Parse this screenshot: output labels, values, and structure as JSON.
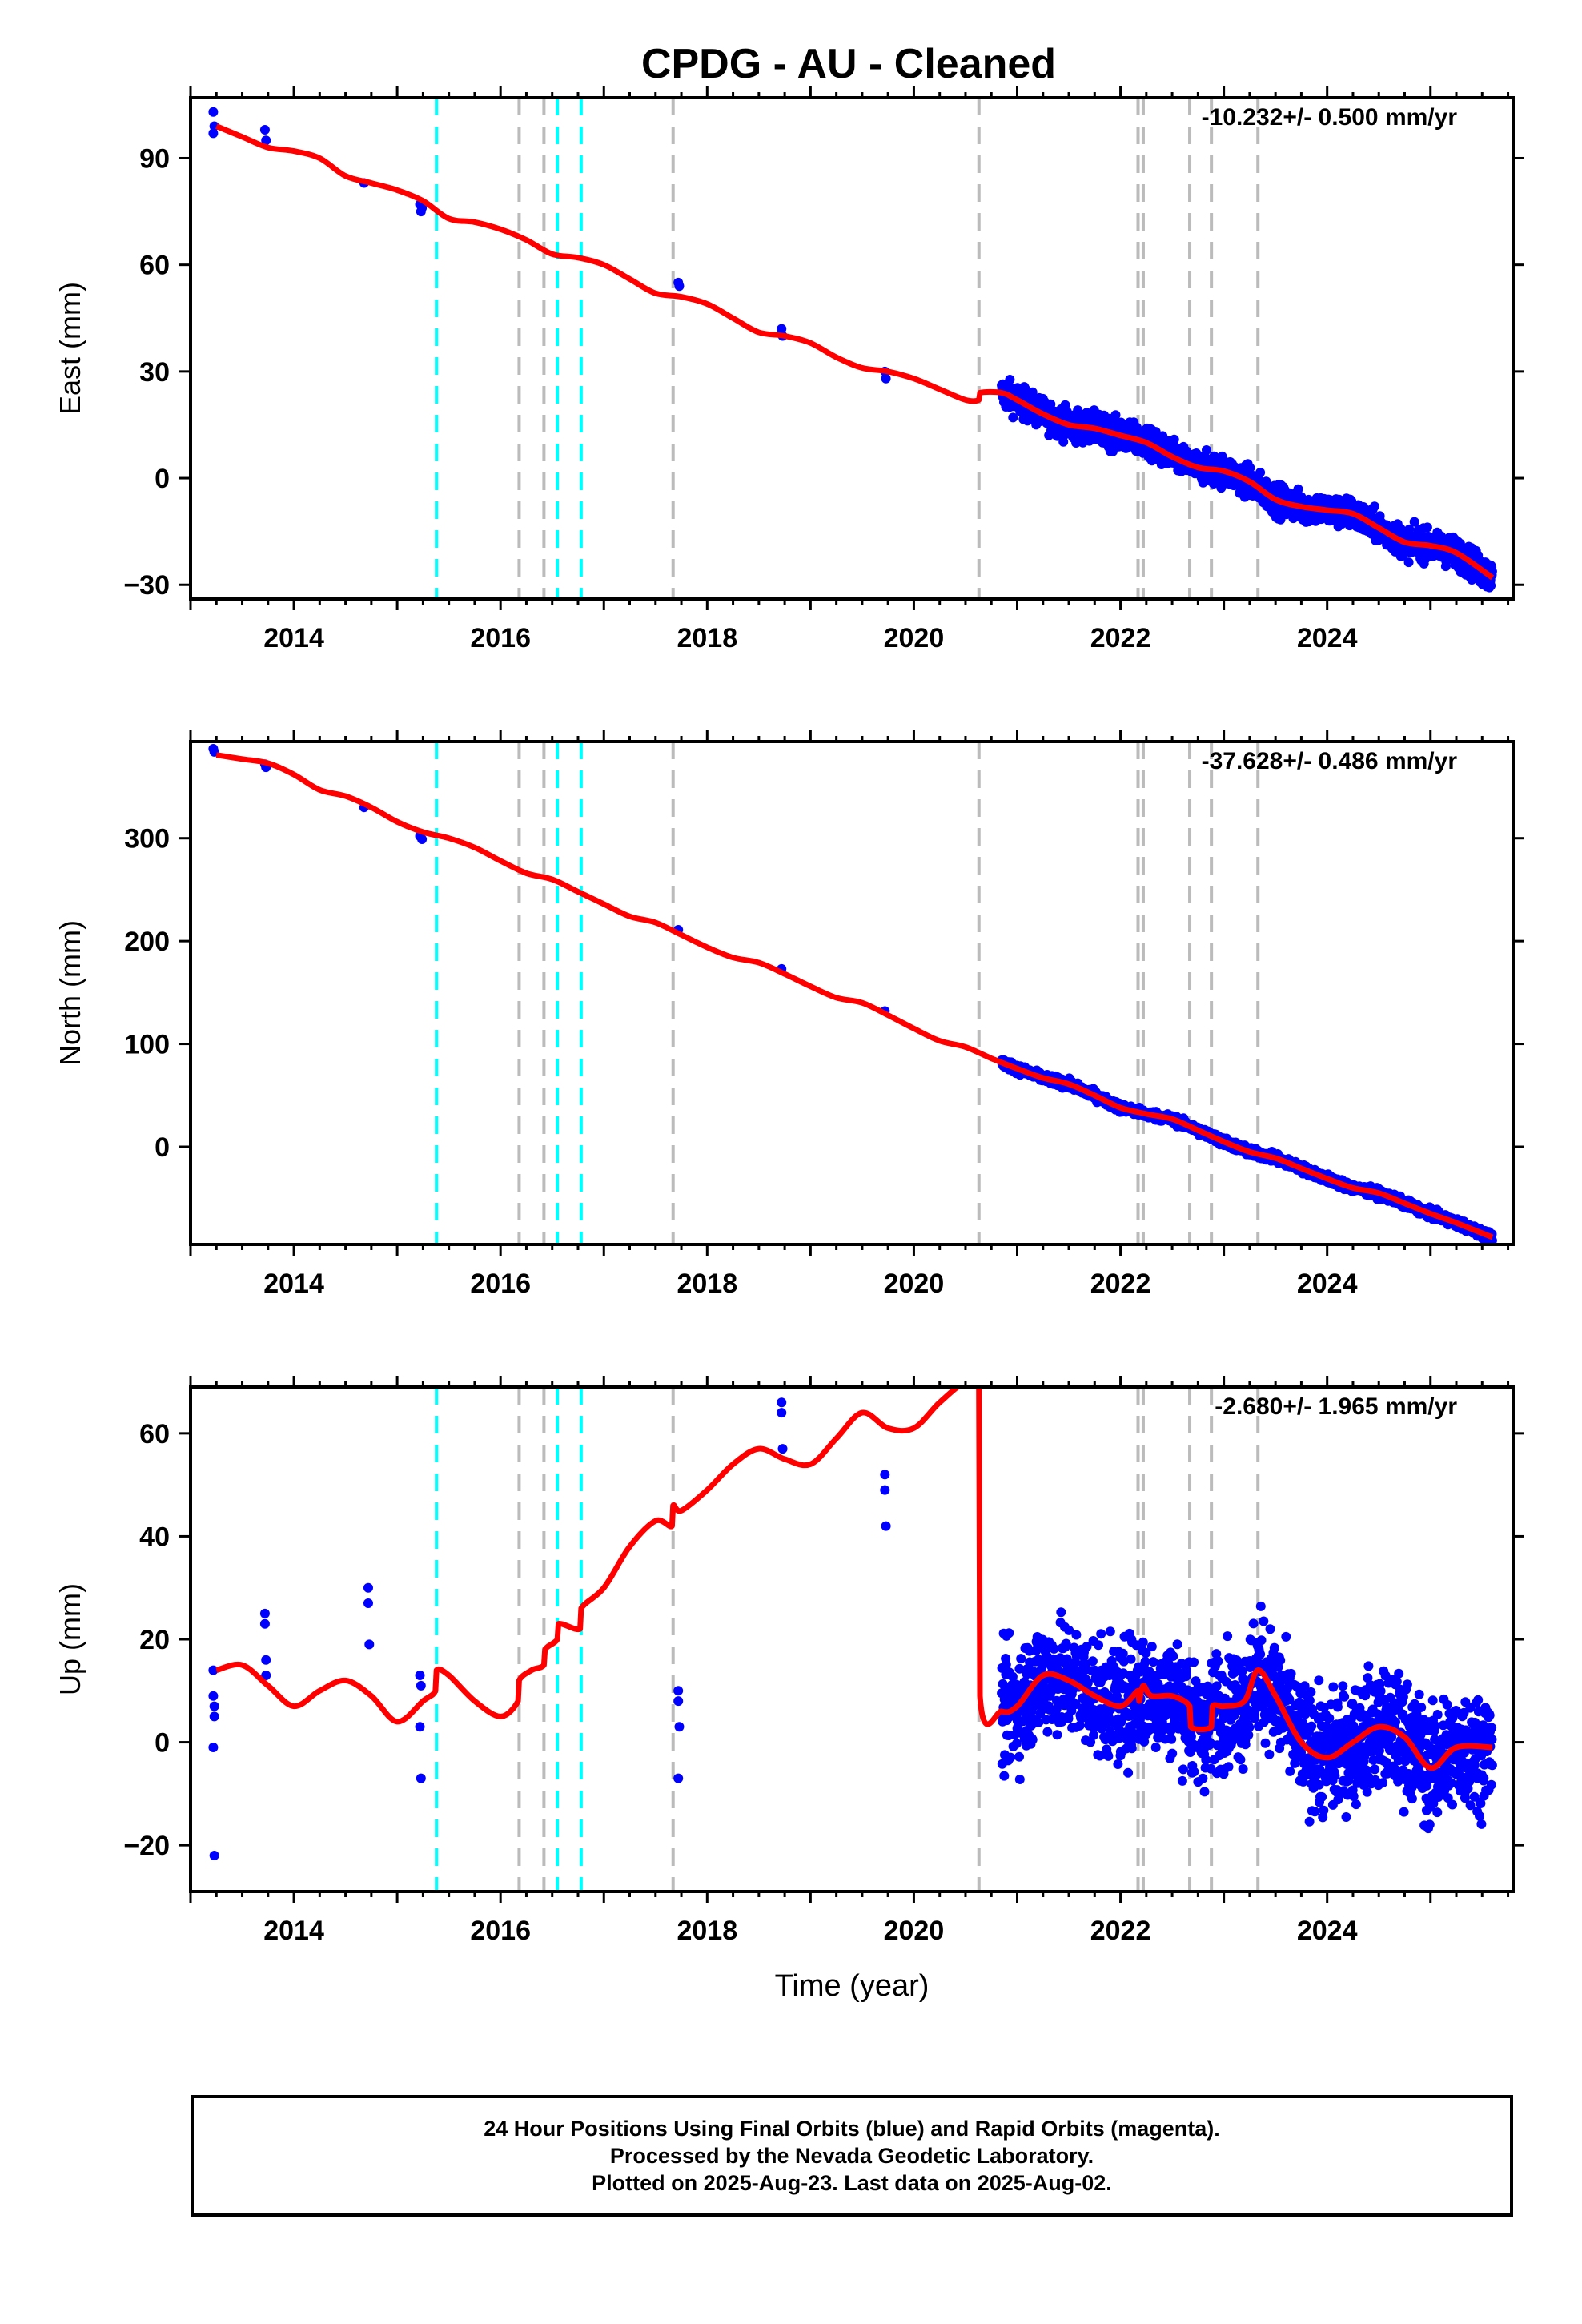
{
  "title": "CPDG  - AU - Cleaned",
  "footer": {
    "line1": "24 Hour Positions Using Final Orbits (blue) and Rapid Orbits (magenta).",
    "line2": "Processed by the Nevada Geodetic Laboratory.",
    "line3": "Plotted on 2025-Aug-23. Last data on 2025-Aug-02."
  },
  "colors": {
    "data_points": "#0000ff",
    "model_line": "#ff0000",
    "antenna_change_lines": "#00ffff",
    "equipment_change_lines": "#bbbbbb"
  },
  "chart_data": [
    {
      "type": "scatter",
      "ylabel": "East (mm)",
      "xlabel": "",
      "xlim": [
        2013.0,
        2025.8
      ],
      "ylim": [
        -34,
        107
      ],
      "xticks": [
        2014,
        2016,
        2018,
        2020,
        2022,
        2024
      ],
      "yticks": [
        -30,
        0,
        30,
        60,
        90
      ],
      "rate_label": "-10.232+/- 0.500 mm/yr",
      "points_x": [
        2013.22,
        2013.22,
        2013.23,
        2013.72,
        2013.73,
        2014.68,
        2015.22,
        2015.23,
        2015.24,
        2017.72,
        2017.73,
        2018.72,
        2018.73,
        2019.72,
        2019.73
      ],
      "points_y": [
        103,
        97,
        99,
        98,
        95,
        83,
        77,
        75,
        76,
        55,
        54,
        42,
        40,
        30,
        28
      ],
      "dense_segment": {
        "x_start": 2020.85,
        "x_end": 2025.6,
        "noise_mm": 3
      },
      "model": {
        "x": [
          2013.25,
          2013.5,
          2013.75,
          2014.0,
          2014.25,
          2014.5,
          2014.75,
          2015.0,
          2015.25,
          2015.5,
          2015.75,
          2016.0,
          2016.25,
          2016.5,
          2016.75,
          2017.0,
          2017.25,
          2017.5,
          2017.75,
          2018.0,
          2018.25,
          2018.5,
          2018.75,
          2019.0,
          2019.25,
          2019.5,
          2019.75,
          2020.0,
          2020.25,
          2020.5,
          2020.63,
          2020.64,
          2020.85,
          2021.0,
          2021.25,
          2021.5,
          2021.75,
          2022.0,
          2022.25,
          2022.5,
          2022.75,
          2023.0,
          2023.25,
          2023.5,
          2023.75,
          2024.0,
          2024.25,
          2024.5,
          2024.75,
          2025.0,
          2025.25,
          2025.6
        ],
        "y": [
          99,
          96,
          93,
          92,
          90,
          85,
          83,
          81,
          78,
          73,
          72,
          70,
          67,
          63,
          62,
          60,
          56,
          52,
          51,
          49,
          45,
          41,
          40,
          38,
          34,
          31,
          30,
          28,
          25,
          22,
          22,
          24,
          24,
          22,
          18,
          15,
          14,
          12,
          10,
          6,
          3,
          2,
          -1,
          -6,
          -8,
          -9,
          -10,
          -14,
          -18,
          -19,
          -21,
          -28
        ]
      },
      "antenna_changes": [
        2015.38,
        2016.55,
        2016.78
      ],
      "equipment_changes": [
        2016.18,
        2016.42,
        2017.67,
        2020.63,
        2022.17,
        2022.22,
        2022.67,
        2022.88,
        2023.33
      ]
    },
    {
      "type": "scatter",
      "ylabel": "North (mm)",
      "xlabel": "",
      "xlim": [
        2013.0,
        2025.8
      ],
      "ylim": [
        -95,
        394
      ],
      "xticks": [
        2014,
        2016,
        2018,
        2020,
        2022,
        2024
      ],
      "yticks": [
        0,
        100,
        200,
        300
      ],
      "rate_label": "-37.628+/- 0.486 mm/yr",
      "points_x": [
        2013.22,
        2013.23,
        2013.72,
        2013.73,
        2014.68,
        2015.22,
        2015.24,
        2017.72,
        2018.72,
        2019.72
      ],
      "points_y": [
        387,
        384,
        372,
        369,
        330,
        302,
        299,
        211,
        173,
        132
      ],
      "dense_segment": {
        "x_start": 2020.85,
        "x_end": 2025.6,
        "noise_mm": 3
      },
      "model": {
        "x": [
          2013.25,
          2013.5,
          2013.75,
          2014.0,
          2014.25,
          2014.5,
          2014.75,
          2015.0,
          2015.25,
          2015.5,
          2015.75,
          2016.0,
          2016.25,
          2016.5,
          2016.75,
          2017.0,
          2017.25,
          2017.5,
          2017.75,
          2018.0,
          2018.25,
          2018.5,
          2018.75,
          2019.0,
          2019.25,
          2019.5,
          2019.75,
          2020.0,
          2020.25,
          2020.5,
          2020.75,
          2021.0,
          2021.25,
          2021.5,
          2021.75,
          2022.0,
          2022.25,
          2022.5,
          2022.75,
          2023.0,
          2023.25,
          2023.5,
          2023.75,
          2024.0,
          2024.25,
          2024.5,
          2024.75,
          2025.0,
          2025.25,
          2025.6
        ],
        "y": [
          381,
          377,
          373,
          362,
          347,
          341,
          330,
          316,
          306,
          300,
          291,
          278,
          266,
          260,
          248,
          236,
          224,
          218,
          206,
          194,
          184,
          179,
          168,
          156,
          145,
          140,
          128,
          115,
          103,
          97,
          86,
          76,
          67,
          61,
          50,
          38,
          32,
          27,
          16,
          5,
          -5,
          -11,
          -21,
          -31,
          -40,
          -45,
          -55,
          -65,
          -74,
          -88
        ]
      },
      "antenna_changes": [
        2015.38,
        2016.55,
        2016.78
      ],
      "equipment_changes": [
        2016.18,
        2016.42,
        2017.67,
        2020.63,
        2022.17,
        2022.22,
        2022.67,
        2022.88,
        2023.33
      ]
    },
    {
      "type": "scatter",
      "ylabel": "Up (mm)",
      "xlabel": "Time (year)",
      "xlim": [
        2013.0,
        2025.8
      ],
      "ylim": [
        -29,
        69
      ],
      "xticks": [
        2014,
        2016,
        2018,
        2020,
        2022,
        2024
      ],
      "yticks": [
        -20,
        0,
        20,
        40,
        60
      ],
      "rate_label": "-2.680+/- 1.965 mm/yr",
      "points_x": [
        2013.22,
        2013.22,
        2013.23,
        2013.23,
        2013.22,
        2013.23,
        2013.72,
        2013.72,
        2013.73,
        2013.73,
        2014.72,
        2014.72,
        2014.73,
        2015.22,
        2015.23,
        2015.22,
        2015.23,
        2017.72,
        2017.72,
        2017.73,
        2017.72,
        2018.72,
        2018.72,
        2018.73,
        2019.72,
        2019.72,
        2019.73
      ],
      "points_y": [
        14,
        9,
        7,
        5,
        -1,
        -22,
        25,
        23,
        16,
        13,
        30,
        27,
        19,
        13,
        11,
        3,
        -7,
        10,
        8,
        3,
        -7,
        66,
        64,
        57,
        52,
        49,
        42
      ],
      "dense_segment": {
        "x_start": 2020.85,
        "x_end": 2025.6,
        "noise_mm": 8
      },
      "model": {
        "x": [
          2013.25,
          2013.5,
          2013.75,
          2014.0,
          2014.25,
          2014.5,
          2014.75,
          2015.0,
          2015.25,
          2015.37,
          2015.38,
          2015.5,
          2015.75,
          2016.0,
          2016.17,
          2016.18,
          2016.3,
          2016.42,
          2016.43,
          2016.55,
          2016.56,
          2016.77,
          2016.78,
          2017.0,
          2017.25,
          2017.5,
          2017.66,
          2017.67,
          2017.75,
          2018.0,
          2018.25,
          2018.5,
          2018.75,
          2019.0,
          2019.25,
          2019.5,
          2019.75,
          2020.0,
          2020.25,
          2020.5,
          2020.63,
          2020.64,
          2020.85,
          2021.0,
          2021.25,
          2021.5,
          2021.75,
          2022.0,
          2022.17,
          2022.18,
          2022.22,
          2022.3,
          2022.5,
          2022.67,
          2022.68,
          2022.88,
          2022.89,
          2023.0,
          2023.2,
          2023.33,
          2023.5,
          2023.75,
          2024.0,
          2024.25,
          2024.5,
          2024.75,
          2025.0,
          2025.25,
          2025.6
        ],
        "y": [
          14,
          15,
          11,
          7,
          10,
          12,
          9,
          4,
          8,
          10,
          14,
          13,
          8,
          5,
          8,
          12,
          14,
          15,
          18,
          20,
          23,
          22,
          26,
          30,
          38,
          43,
          42,
          46,
          45,
          49,
          54,
          57,
          55,
          54,
          59,
          64,
          61,
          61,
          66,
          70,
          69,
          9,
          6,
          7,
          13,
          12,
          9,
          7,
          10,
          8,
          11,
          9,
          9,
          7,
          3,
          3,
          7,
          7,
          8,
          14,
          9,
          0,
          -3,
          0,
          3,
          1,
          -5,
          -1,
          -1
        ]
      },
      "antenna_changes": [
        2015.38,
        2016.55,
        2016.78
      ],
      "equipment_changes": [
        2016.18,
        2016.42,
        2017.67,
        2020.63,
        2022.17,
        2022.22,
        2022.67,
        2022.88,
        2023.33
      ]
    }
  ]
}
